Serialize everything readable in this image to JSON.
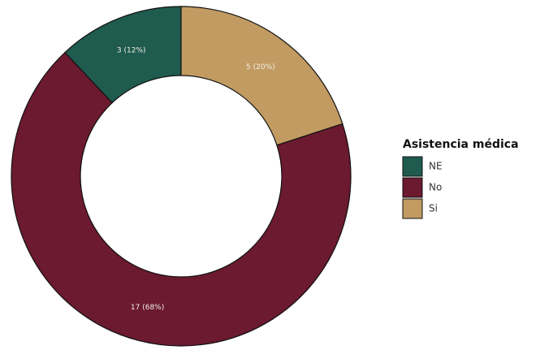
{
  "chart_data": {
    "type": "pie",
    "variant": "donut",
    "title": "",
    "legend": {
      "title": "Asistencia médica",
      "placement": "right"
    },
    "categories": [
      "NE",
      "No",
      "Si"
    ],
    "values": [
      3,
      17,
      5
    ],
    "value_labels": [
      "3 (12%)",
      "17 (68%)",
      "5 (20%)"
    ],
    "colors": [
      "#1f5b4e",
      "#6b1a2f",
      "#c29b63"
    ]
  }
}
